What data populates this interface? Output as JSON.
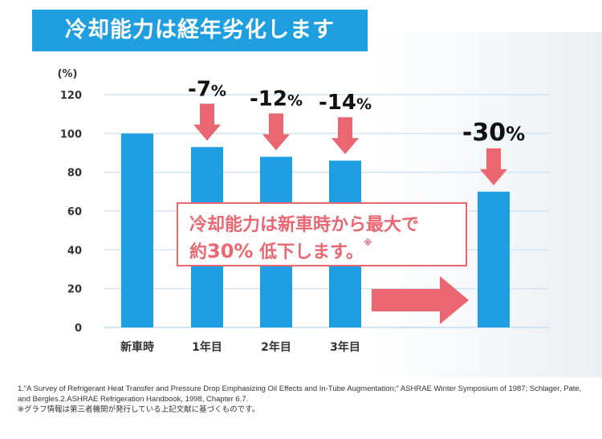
{
  "title": "冷却能力は経年劣化します",
  "chart_data": {
    "type": "bar",
    "unit_label": "(%)",
    "categories": [
      "新車時",
      "1年目",
      "2年目",
      "3年目",
      ""
    ],
    "values": [
      100,
      93,
      88,
      86,
      70
    ],
    "change_labels": [
      "",
      "-7%",
      "-12%",
      "-14%",
      "-30%"
    ],
    "ylim": [
      0,
      120
    ],
    "yticks": [
      "0",
      "20",
      "40",
      "60",
      "80",
      "100",
      "120"
    ],
    "grid": true,
    "colors": {
      "bar": "#1e9fe3",
      "accent": "#ea6670",
      "grid": "#cfe5f5"
    }
  },
  "callout": {
    "line1": "冷却能力は新車時から最大で",
    "line2_prefix": "約",
    "line2_value": "30%",
    "line2_suffix": " 低下します。",
    "note_mark": "※"
  },
  "footnotes": [
    "1.“A Survey of Refrigerant Heat Transfer and Pressure Drop Emphasizing Oil Effects and In-Tube Augmentation;” ASHRAE Winter Symposium of 1987; Schlager, Pate, and Bergles.2.ASHRAE Refrigeration Handbook, 1998, Chapter 6.7.",
    "※グラフ情報は第三者機関が発行している上記文献に基づくものです。"
  ]
}
